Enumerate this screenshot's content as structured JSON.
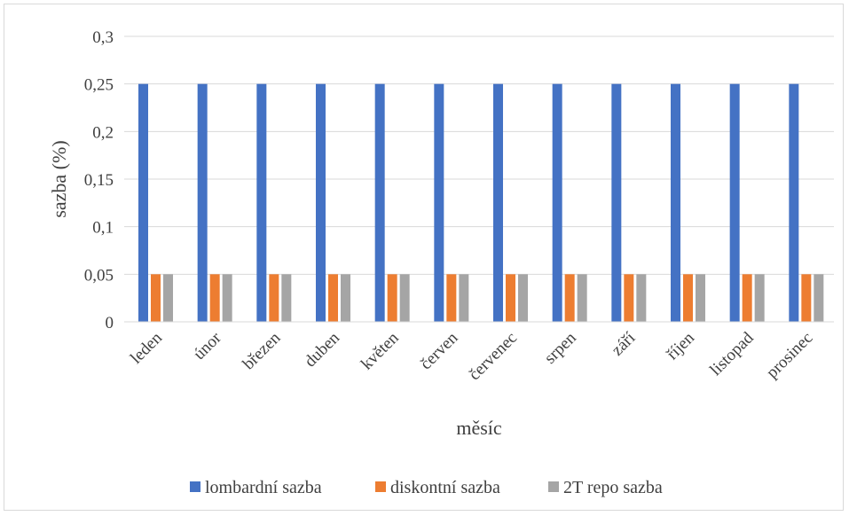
{
  "chart_data": {
    "type": "bar",
    "categories": [
      "leden",
      "únor",
      "březen",
      "duben",
      "květen",
      "červen",
      "červenec",
      "srpen",
      "září",
      "říjen",
      "listopad",
      "prosinec"
    ],
    "series": [
      {
        "name": "lombardní sazba",
        "color": "#4472c4",
        "values": [
          0.25,
          0.25,
          0.25,
          0.25,
          0.25,
          0.25,
          0.25,
          0.25,
          0.25,
          0.25,
          0.25,
          0.25
        ]
      },
      {
        "name": "diskontní sazba",
        "color": "#ed7d31",
        "values": [
          0.05,
          0.05,
          0.05,
          0.05,
          0.05,
          0.05,
          0.05,
          0.05,
          0.05,
          0.05,
          0.05,
          0.05
        ]
      },
      {
        "name": "2T repo sazba",
        "color": "#a5a5a5",
        "values": [
          0.05,
          0.05,
          0.05,
          0.05,
          0.05,
          0.05,
          0.05,
          0.05,
          0.05,
          0.05,
          0.05,
          0.05
        ]
      }
    ],
    "title": "",
    "xlabel": "měsíc",
    "ylabel": "sazba (%)",
    "ylim": [
      0,
      0.3
    ],
    "yticks": [
      0,
      0.05,
      0.1,
      0.15,
      0.2,
      0.25,
      0.3
    ],
    "ytick_labels": [
      "0",
      "0,05",
      "0,1",
      "0,15",
      "0,2",
      "0,25",
      "0,3"
    ],
    "grid": true,
    "gridline_color": "#d9d9d9",
    "legend_position": "bottom"
  }
}
